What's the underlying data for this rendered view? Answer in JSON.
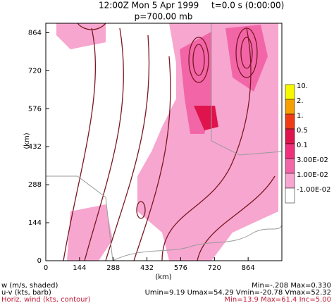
{
  "chart_data": {
    "type": "contour",
    "title": "12:00Z Mon  5 Apr 1999",
    "subtitle": "t=0.0 s (0:00:00)",
    "level": "p=700.00 mb",
    "xlabel": "(km)",
    "ylabel": "(km)",
    "xlim": [
      0,
      1008
    ],
    "ylim": [
      0,
      900
    ],
    "xticks": [
      0,
      144,
      288,
      432,
      576,
      720,
      864
    ],
    "yticks": [
      0,
      144,
      288,
      432,
      576,
      720,
      864
    ],
    "legend": [
      {
        "label": "10.",
        "color": "#f7f700"
      },
      {
        "label": "2.",
        "color": "#f5a000"
      },
      {
        "label": "1.",
        "color": "#f03c14"
      },
      {
        "label": "0.5",
        "color": "#e0144c"
      },
      {
        "label": "0.1",
        "color": "#f0307a"
      },
      {
        "label": "3.00E-02",
        "color": "#f266a8"
      },
      {
        "label": "1.00E-02",
        "color": "#f7a6cf"
      },
      {
        "label": "-1.00E-02",
        "color": "#ffffff"
      }
    ],
    "footer_left": [
      "w (m/s, shaded)",
      "u-v (kts, barb)",
      "Horiz. wind (kts, contour)"
    ],
    "footer_right": [
      "Min=-.208 Max=0.330",
      "Umin=9.19 Umax=54.29 Vmin=-20.78 Vmax=52.32",
      "Min=13.9 Max=61.4 Inc=5.00"
    ]
  }
}
